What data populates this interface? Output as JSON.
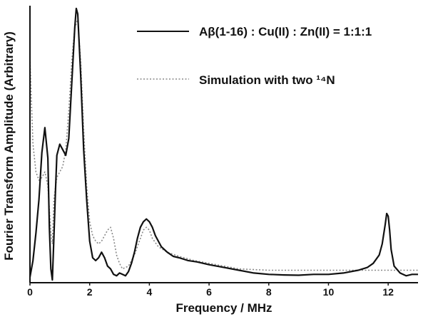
{
  "chart_data": {
    "type": "line",
    "xlabel": "Frequency / MHz",
    "ylabel": "Fourier Transform Amplitude (Arbitrary)",
    "xlim": [
      0,
      13
    ],
    "ylim": [
      0,
      1.0
    ],
    "x_ticks": [
      "0",
      "2",
      "4",
      "6",
      "8",
      "10",
      "12"
    ],
    "grid": false,
    "legend_position": "top-right",
    "series": [
      {
        "name": "Aβ(1-16) : Cu(II) : Zn(II) = 1:1:1",
        "style": "solid",
        "color": "#111111",
        "points": [
          [
            0.0,
            0.02
          ],
          [
            0.1,
            0.08
          ],
          [
            0.2,
            0.18
          ],
          [
            0.3,
            0.3
          ],
          [
            0.4,
            0.47
          ],
          [
            0.5,
            0.56
          ],
          [
            0.6,
            0.45
          ],
          [
            0.65,
            0.2
          ],
          [
            0.7,
            0.05
          ],
          [
            0.75,
            0.01
          ],
          [
            0.8,
            0.16
          ],
          [
            0.85,
            0.32
          ],
          [
            0.9,
            0.46
          ],
          [
            1.0,
            0.5
          ],
          [
            1.1,
            0.48
          ],
          [
            1.2,
            0.46
          ],
          [
            1.3,
            0.52
          ],
          [
            1.4,
            0.72
          ],
          [
            1.5,
            0.92
          ],
          [
            1.55,
            0.99
          ],
          [
            1.6,
            0.97
          ],
          [
            1.7,
            0.75
          ],
          [
            1.8,
            0.48
          ],
          [
            1.9,
            0.3
          ],
          [
            2.0,
            0.15
          ],
          [
            2.1,
            0.09
          ],
          [
            2.2,
            0.08
          ],
          [
            2.3,
            0.09
          ],
          [
            2.4,
            0.11
          ],
          [
            2.5,
            0.09
          ],
          [
            2.6,
            0.06
          ],
          [
            2.7,
            0.05
          ],
          [
            2.8,
            0.03
          ],
          [
            2.9,
            0.025
          ],
          [
            3.0,
            0.035
          ],
          [
            3.1,
            0.03
          ],
          [
            3.2,
            0.025
          ],
          [
            3.3,
            0.04
          ],
          [
            3.4,
            0.07
          ],
          [
            3.5,
            0.11
          ],
          [
            3.6,
            0.16
          ],
          [
            3.7,
            0.2
          ],
          [
            3.8,
            0.22
          ],
          [
            3.9,
            0.23
          ],
          [
            4.0,
            0.22
          ],
          [
            4.1,
            0.2
          ],
          [
            4.2,
            0.17
          ],
          [
            4.4,
            0.13
          ],
          [
            4.6,
            0.11
          ],
          [
            4.8,
            0.095
          ],
          [
            5.0,
            0.09
          ],
          [
            5.3,
            0.08
          ],
          [
            5.6,
            0.075
          ],
          [
            6.0,
            0.065
          ],
          [
            6.5,
            0.055
          ],
          [
            7.0,
            0.045
          ],
          [
            7.5,
            0.035
          ],
          [
            8.0,
            0.03
          ],
          [
            8.5,
            0.028
          ],
          [
            9.0,
            0.027
          ],
          [
            9.5,
            0.03
          ],
          [
            10.0,
            0.03
          ],
          [
            10.5,
            0.035
          ],
          [
            11.0,
            0.045
          ],
          [
            11.3,
            0.055
          ],
          [
            11.5,
            0.07
          ],
          [
            11.7,
            0.1
          ],
          [
            11.8,
            0.14
          ],
          [
            11.9,
            0.21
          ],
          [
            11.95,
            0.25
          ],
          [
            12.0,
            0.24
          ],
          [
            12.05,
            0.19
          ],
          [
            12.1,
            0.12
          ],
          [
            12.2,
            0.06
          ],
          [
            12.4,
            0.035
          ],
          [
            12.6,
            0.025
          ],
          [
            12.8,
            0.03
          ],
          [
            13.0,
            0.03
          ]
        ]
      },
      {
        "name": "Simulation with two ¹⁴N",
        "style": "dotted",
        "color": "#888888",
        "points": [
          [
            0.0,
            0.82
          ],
          [
            0.05,
            0.65
          ],
          [
            0.1,
            0.5
          ],
          [
            0.2,
            0.4
          ],
          [
            0.3,
            0.37
          ],
          [
            0.4,
            0.38
          ],
          [
            0.5,
            0.4
          ],
          [
            0.6,
            0.35
          ],
          [
            0.7,
            0.18
          ],
          [
            0.75,
            0.14
          ],
          [
            0.8,
            0.3
          ],
          [
            0.9,
            0.38
          ],
          [
            1.0,
            0.4
          ],
          [
            1.1,
            0.42
          ],
          [
            1.2,
            0.48
          ],
          [
            1.3,
            0.62
          ],
          [
            1.4,
            0.8
          ],
          [
            1.5,
            0.92
          ],
          [
            1.6,
            0.95
          ],
          [
            1.7,
            0.8
          ],
          [
            1.8,
            0.55
          ],
          [
            1.9,
            0.35
          ],
          [
            2.0,
            0.22
          ],
          [
            2.1,
            0.17
          ],
          [
            2.2,
            0.15
          ],
          [
            2.3,
            0.14
          ],
          [
            2.4,
            0.15
          ],
          [
            2.5,
            0.17
          ],
          [
            2.6,
            0.19
          ],
          [
            2.7,
            0.2
          ],
          [
            2.8,
            0.16
          ],
          [
            2.9,
            0.1
          ],
          [
            3.0,
            0.07
          ],
          [
            3.1,
            0.05
          ],
          [
            3.2,
            0.055
          ],
          [
            3.3,
            0.06
          ],
          [
            3.4,
            0.08
          ],
          [
            3.5,
            0.1
          ],
          [
            3.6,
            0.13
          ],
          [
            3.7,
            0.16
          ],
          [
            3.8,
            0.19
          ],
          [
            3.9,
            0.2
          ],
          [
            4.0,
            0.19
          ],
          [
            4.1,
            0.16
          ],
          [
            4.3,
            0.13
          ],
          [
            4.6,
            0.11
          ],
          [
            5.0,
            0.095
          ],
          [
            5.5,
            0.08
          ],
          [
            6.0,
            0.07
          ],
          [
            6.5,
            0.06
          ],
          [
            7.0,
            0.05
          ],
          [
            8.0,
            0.045
          ],
          [
            9.0,
            0.045
          ],
          [
            10.0,
            0.045
          ],
          [
            11.0,
            0.045
          ],
          [
            12.0,
            0.045
          ],
          [
            13.0,
            0.045
          ]
        ]
      }
    ]
  }
}
